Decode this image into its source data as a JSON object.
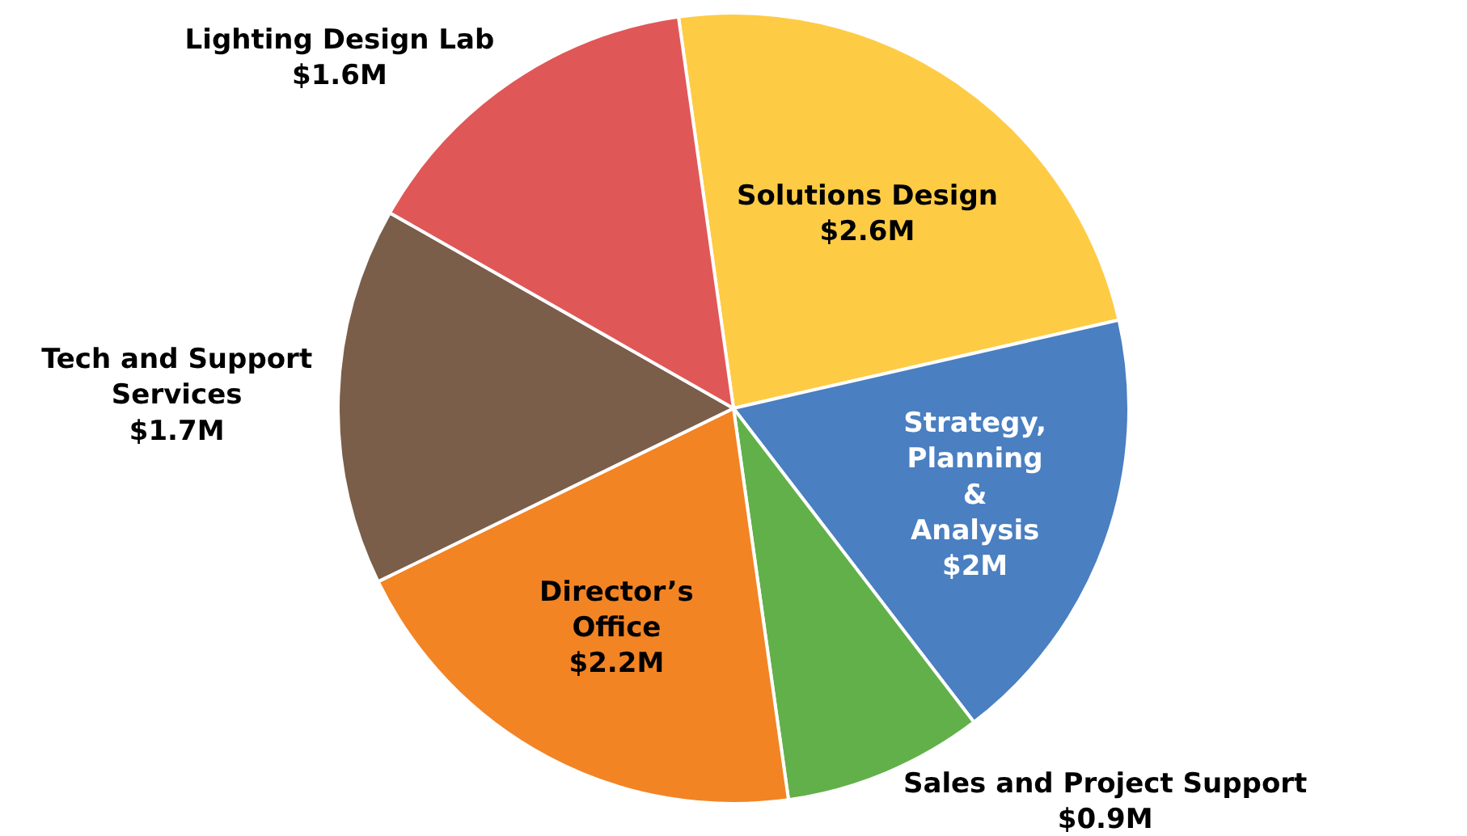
{
  "chart_data": {
    "type": "pie",
    "categories": [
      "Solutions Design",
      "Strategy, Planning & Analysis",
      "Sales and Project Support",
      "Director’s Office",
      "Tech and Support Services",
      "Lighting Design Lab"
    ],
    "values": [
      2.6,
      2,
      0.9,
      2.2,
      1.7,
      1.6
    ],
    "value_labels": [
      "$2.6M",
      "$2M",
      "$0.9M",
      "$2.2M",
      "$1.7M",
      "$1.6M"
    ],
    "colors": [
      "#fecb45",
      "#4a7fc1",
      "#62b04a",
      "#f28424",
      "#7a5e49",
      "#e05757"
    ],
    "legend": false
  }
}
